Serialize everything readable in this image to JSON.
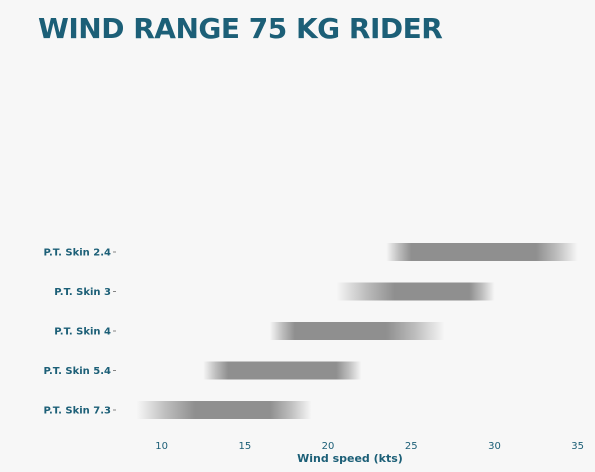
{
  "chart_data": {
    "type": "bar",
    "title": "WIND RANGE 75 KG RIDER",
    "xlabel": "Wind speed (kts)",
    "ylabel": "",
    "xlim": [
      7.5,
      35.5
    ],
    "xticks": [
      10,
      15,
      20,
      25,
      30,
      35
    ],
    "grid": false,
    "legend": "none",
    "bar_color": "#8f8f8f",
    "text_color": "#1c5f77",
    "categories": [
      "P.T. Skin 2.4",
      "P.T. Skin 3",
      "P.T. Skin 4",
      "P.T. Skin 5.4",
      "P.T. Skin 7.3"
    ],
    "ranges": [
      {
        "name": "P.T. Skin 2.4",
        "min": 23.5,
        "low": 25,
        "high": 32.5,
        "max": 35
      },
      {
        "name": "P.T. Skin 3",
        "min": 20.5,
        "low": 24,
        "high": 28.5,
        "max": 30
      },
      {
        "name": "P.T. Skin 4",
        "min": 16.5,
        "low": 18,
        "high": 23.5,
        "max": 27
      },
      {
        "name": "P.T. Skin 5.4",
        "min": 12.5,
        "low": 14,
        "high": 20.5,
        "max": 22
      },
      {
        "name": "P.T. Skin 7.3",
        "min": 8.5,
        "low": 12,
        "high": 16.5,
        "max": 19
      }
    ]
  }
}
